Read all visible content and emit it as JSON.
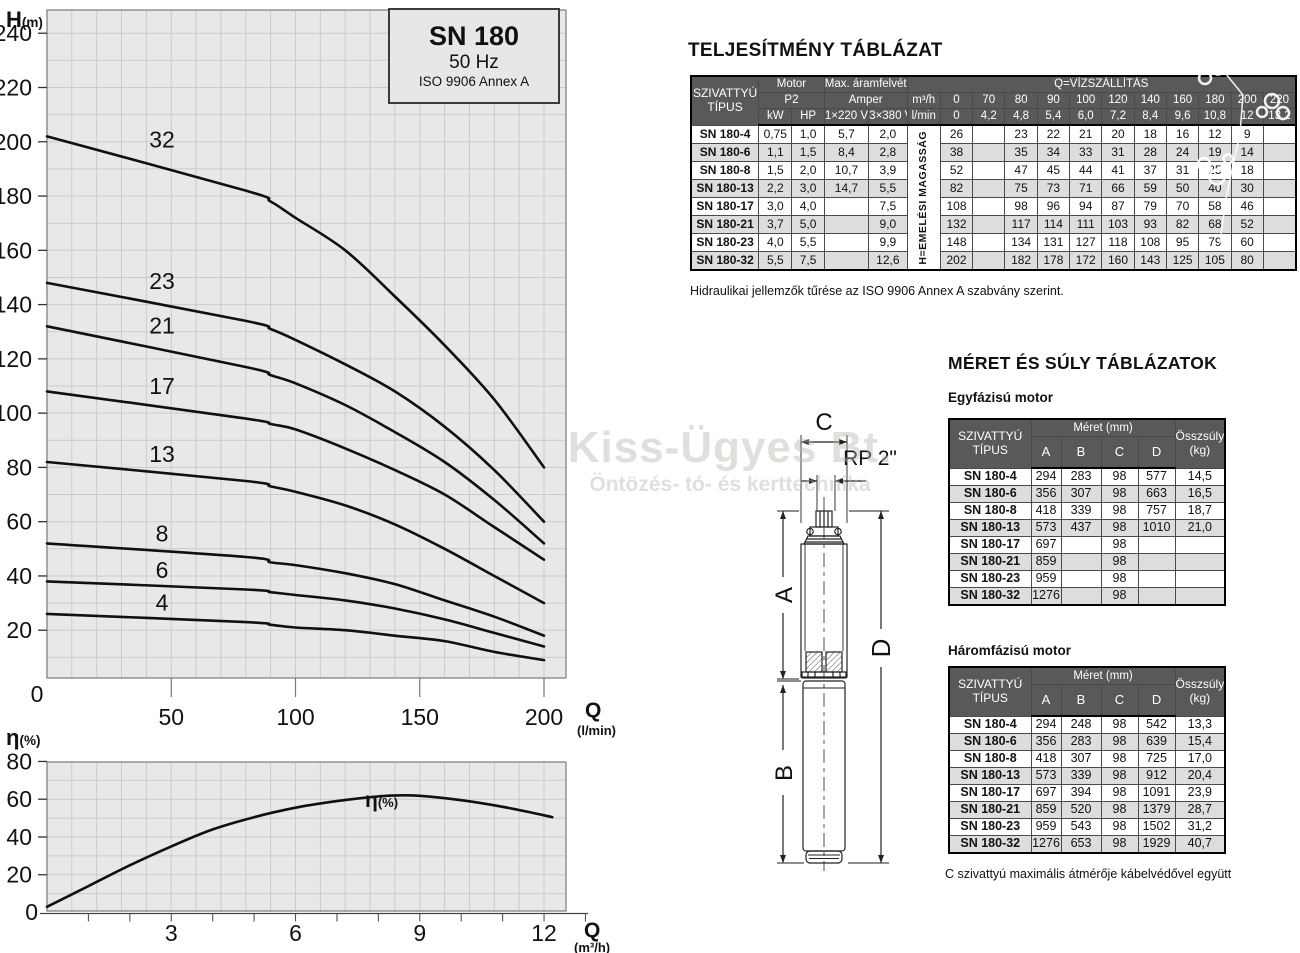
{
  "colors": {
    "chart_bg": "#e8e8e8",
    "grid": "#cbcbcb",
    "curve": "#101010",
    "axis": "#555555",
    "table_header_bg": "#58595b",
    "row_alt": "#dcdddf"
  },
  "title_box": {
    "model": "SN 180",
    "frequency": "50 Hz",
    "standard": "ISO 9906 Annex A"
  },
  "watermark": {
    "line1": "Kiss-Ügyes Bt.",
    "line2": "Öntözés- tó- és kerttechnika"
  },
  "chart_data": [
    {
      "type": "line",
      "title": "SN 180 head-flow curves",
      "y_title": "H",
      "y_title_unit": "(m)",
      "x_title": "Q",
      "x_title_unit": "(l/min)",
      "origin_label": "0",
      "x_ticks": [
        50,
        100,
        150,
        200
      ],
      "y_ticks": [
        20,
        40,
        60,
        80,
        100,
        120,
        140,
        160,
        180,
        200,
        220,
        240
      ],
      "xlim": [
        0,
        209
      ],
      "ylim": [
        0,
        248
      ],
      "grid": true,
      "x": [
        0,
        80,
        90,
        100,
        120,
        140,
        160,
        180,
        200
      ],
      "series": [
        {
          "name": "4",
          "values": [
            26,
            23,
            22,
            21,
            20,
            18,
            16,
            12,
            9
          ]
        },
        {
          "name": "6",
          "values": [
            38,
            35,
            34,
            33,
            31,
            28,
            24,
            19,
            14
          ]
        },
        {
          "name": "8",
          "values": [
            52,
            47,
            45,
            44,
            41,
            37,
            31,
            25,
            18
          ]
        },
        {
          "name": "13",
          "values": [
            82,
            75,
            73,
            71,
            66,
            59,
            50,
            40,
            30
          ]
        },
        {
          "name": "17",
          "values": [
            108,
            98,
            96,
            94,
            87,
            79,
            70,
            58,
            46
          ]
        },
        {
          "name": "21",
          "values": [
            132,
            117,
            114,
            111,
            103,
            93,
            82,
            68,
            52
          ]
        },
        {
          "name": "23",
          "values": [
            148,
            134,
            131,
            127,
            118,
            108,
            95,
            79,
            60
          ]
        },
        {
          "name": "32",
          "values": [
            202,
            182,
            178,
            172,
            160,
            143,
            125,
            105,
            80
          ]
        }
      ]
    },
    {
      "type": "line",
      "title": "Efficiency curve",
      "y_title": "η",
      "y_title_unit": "(%)",
      "x_title": "Q",
      "x_title_unit": "(m³/h)",
      "origin_label": "0",
      "curve_label": "η",
      "curve_label_unit": "(%)",
      "x_ticks": [
        3,
        6,
        9,
        12
      ],
      "y_ticks": [
        20,
        40,
        60,
        80
      ],
      "xlim": [
        0,
        13
      ],
      "ylim": [
        0,
        80
      ],
      "grid": true,
      "series": [
        {
          "name": "η(%)",
          "points": [
            [
              0,
              3
            ],
            [
              1,
              14
            ],
            [
              2,
              25
            ],
            [
              3,
              35
            ],
            [
              4,
              44
            ],
            [
              5,
              50.5
            ],
            [
              6,
              55.5
            ],
            [
              7,
              59
            ],
            [
              8,
              61.5
            ],
            [
              8.5,
              62
            ],
            [
              9,
              61.8
            ],
            [
              10,
              59.5
            ],
            [
              11,
              56
            ],
            [
              12,
              51.5
            ],
            [
              12.2,
              50.5
            ]
          ]
        }
      ]
    }
  ],
  "performance_table": {
    "title": "TELJESÍTMÉNY TÁBLÁZAT",
    "headers": {
      "pump_type": "SZIVATTYÚ TÍPUS",
      "motor": "Motor",
      "p2": "P2",
      "kw": "kW",
      "hp": "HP",
      "max_current": "Max. áramfelvétel",
      "amper": "Amper",
      "v220": "1×220 V",
      "v380": "3×380 V",
      "q_title": "Q=VÍZSZÁLLÍTÁS",
      "unit_m3h": "m³/h",
      "unit_lmin": "l/min",
      "m3h_values": [
        "0",
        "70",
        "80",
        "90",
        "100",
        "120",
        "140",
        "160",
        "180",
        "200",
        "220"
      ],
      "lmin_values": [
        "0",
        "4,2",
        "4,8",
        "5,4",
        "6,0",
        "7,2",
        "8,4",
        "9,6",
        "10,8",
        "12",
        "13,2"
      ]
    },
    "side_label": "H=EMELÉSI MAGASSÁG",
    "rows": [
      {
        "type": "SN 180-4",
        "kw": "0,75",
        "hp": "1,0",
        "a220": "5,7",
        "a380": "2,0",
        "h": [
          "26",
          "",
          "23",
          "22",
          "21",
          "20",
          "18",
          "16",
          "12",
          "9",
          ""
        ]
      },
      {
        "type": "SN 180-6",
        "kw": "1,1",
        "hp": "1,5",
        "a220": "8,4",
        "a380": "2,8",
        "h": [
          "38",
          "",
          "35",
          "34",
          "33",
          "31",
          "28",
          "24",
          "19",
          "14",
          ""
        ]
      },
      {
        "type": "SN 180-8",
        "kw": "1,5",
        "hp": "2,0",
        "a220": "10,7",
        "a380": "3,9",
        "h": [
          "52",
          "",
          "47",
          "45",
          "44",
          "41",
          "37",
          "31",
          "25",
          "18",
          ""
        ]
      },
      {
        "type": "SN 180-13",
        "kw": "2,2",
        "hp": "3,0",
        "a220": "14,7",
        "a380": "5,5",
        "h": [
          "82",
          "",
          "75",
          "73",
          "71",
          "66",
          "59",
          "50",
          "40",
          "30",
          ""
        ]
      },
      {
        "type": "SN 180-17",
        "kw": "3,0",
        "hp": "4,0",
        "a220": "",
        "a380": "7,5",
        "h": [
          "108",
          "",
          "98",
          "96",
          "94",
          "87",
          "79",
          "70",
          "58",
          "46",
          ""
        ]
      },
      {
        "type": "SN 180-21",
        "kw": "3,7",
        "hp": "5,0",
        "a220": "",
        "a380": "9,0",
        "h": [
          "132",
          "",
          "117",
          "114",
          "111",
          "103",
          "93",
          "82",
          "68",
          "52",
          ""
        ]
      },
      {
        "type": "SN 180-23",
        "kw": "4,0",
        "hp": "5,5",
        "a220": "",
        "a380": "9,9",
        "h": [
          "148",
          "",
          "134",
          "131",
          "127",
          "118",
          "108",
          "95",
          "79",
          "60",
          ""
        ]
      },
      {
        "type": "SN 180-32",
        "kw": "5,5",
        "hp": "7,5",
        "a220": "",
        "a380": "12,6",
        "h": [
          "202",
          "",
          "182",
          "178",
          "172",
          "160",
          "143",
          "125",
          "105",
          "80",
          ""
        ]
      }
    ],
    "footnote": "Hidraulikai jellemzők tűrése az ISO 9906 Annex A szabvány szerint."
  },
  "dimension_section": {
    "title": "MÉRET ÉS SÚLY TÁBLÁZATOK",
    "headers": {
      "pump_type": "SZIVATTYÚ TÍPUS",
      "size": "Méret (mm)",
      "cols": [
        "A",
        "B",
        "C",
        "D"
      ],
      "weight": "Összsúly (kg)"
    },
    "single_phase": {
      "subtitle": "Egyfázisú motor",
      "rows": [
        [
          "SN 180-4",
          "294",
          "283",
          "98",
          "577",
          "14,5"
        ],
        [
          "SN 180-6",
          "356",
          "307",
          "98",
          "663",
          "16,5"
        ],
        [
          "SN 180-8",
          "418",
          "339",
          "98",
          "757",
          "18,7"
        ],
        [
          "SN 180-13",
          "573",
          "437",
          "98",
          "1010",
          "21,0"
        ],
        [
          "SN 180-17",
          "697",
          "",
          "98",
          "",
          ""
        ],
        [
          "SN 180-21",
          "859",
          "",
          "98",
          "",
          ""
        ],
        [
          "SN 180-23",
          "959",
          "",
          "98",
          "",
          ""
        ],
        [
          "SN 180-32",
          "1276",
          "",
          "98",
          "",
          ""
        ]
      ]
    },
    "three_phase": {
      "subtitle": "Háromfázisú motor",
      "rows": [
        [
          "SN 180-4",
          "294",
          "248",
          "98",
          "542",
          "13,3"
        ],
        [
          "SN 180-6",
          "356",
          "283",
          "98",
          "639",
          "15,4"
        ],
        [
          "SN 180-8",
          "418",
          "307",
          "98",
          "725",
          "17,0"
        ],
        [
          "SN 180-13",
          "573",
          "339",
          "98",
          "912",
          "20,4"
        ],
        [
          "SN 180-17",
          "697",
          "394",
          "98",
          "1091",
          "23,9"
        ],
        [
          "SN 180-21",
          "859",
          "520",
          "98",
          "1379",
          "28,7"
        ],
        [
          "SN 180-23",
          "959",
          "543",
          "98",
          "1502",
          "31,2"
        ],
        [
          "SN 180-32",
          "1276",
          "653",
          "98",
          "1929",
          "40,7"
        ]
      ]
    },
    "footnote": "C szivattyú maximális átmérője kábelvédővel együtt"
  },
  "pump_diagram": {
    "dim_c": "C",
    "thread": "RP 2\"",
    "dim_a": "A",
    "dim_b": "B",
    "dim_d": "D"
  }
}
